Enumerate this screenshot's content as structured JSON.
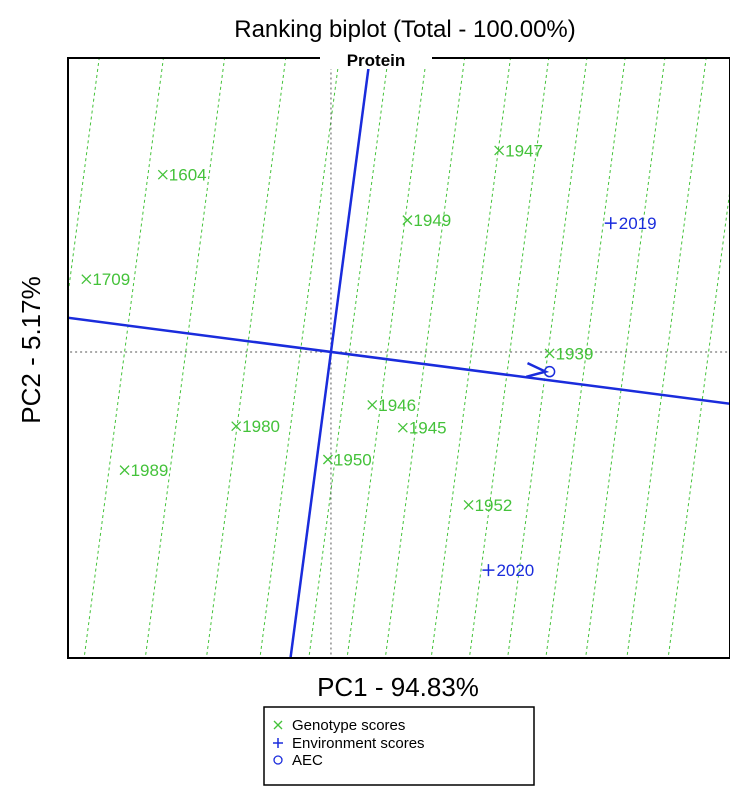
{
  "chart_data": {
    "type": "scatter",
    "title": "Ranking biplot (Total - 100.00%)",
    "subtitle": "Protein",
    "xlabel": "PC1 - 94.83%",
    "ylabel": "PC2 - 5.17%",
    "xlim": [
      -1.72,
      2.61
    ],
    "ylim": [
      -2.02,
      1.94
    ],
    "grid": false,
    "legend_position": "bottom-center",
    "colors": {
      "genotype": "#44c23a",
      "environment": "#1a2cdc",
      "aec": "#1a2cdc"
    },
    "aec_slope": -0.131,
    "aec_point": [
      1.43,
      -0.13
    ],
    "projection_line_offsets": [
      -2.27,
      -1.77,
      -1.35,
      -0.95,
      -0.55,
      -0.2,
      0.12,
      0.37,
      0.62,
      0.92,
      1.17,
      1.42,
      1.67,
      1.93,
      2.2,
      2.47
    ],
    "series": [
      {
        "name": "Genotype scores",
        "marker": "x",
        "points": [
          {
            "label": "1604",
            "x": -1.1,
            "y": 1.17
          },
          {
            "label": "1709",
            "x": -1.6,
            "y": 0.48
          },
          {
            "label": "1989",
            "x": -1.35,
            "y": -0.78
          },
          {
            "label": "1980",
            "x": -0.62,
            "y": -0.49
          },
          {
            "label": "1950",
            "x": -0.02,
            "y": -0.71
          },
          {
            "label": "1946",
            "x": 0.27,
            "y": -0.35
          },
          {
            "label": "1945",
            "x": 0.47,
            "y": -0.5
          },
          {
            "label": "1949",
            "x": 0.5,
            "y": 0.87
          },
          {
            "label": "1947",
            "x": 1.1,
            "y": 1.33
          },
          {
            "label": "1952",
            "x": 0.9,
            "y": -1.01
          },
          {
            "label": "1939",
            "x": 1.43,
            "y": -0.01
          }
        ]
      },
      {
        "name": "Environment scores",
        "marker": "+",
        "points": [
          {
            "label": "2019",
            "x": 1.83,
            "y": 0.85
          },
          {
            "label": "2020",
            "x": 1.03,
            "y": -1.44
          }
        ]
      },
      {
        "name": "AEC",
        "marker": "o",
        "points": []
      }
    ],
    "legend": [
      "Genotype scores",
      "Environment scores",
      "AEC"
    ]
  }
}
